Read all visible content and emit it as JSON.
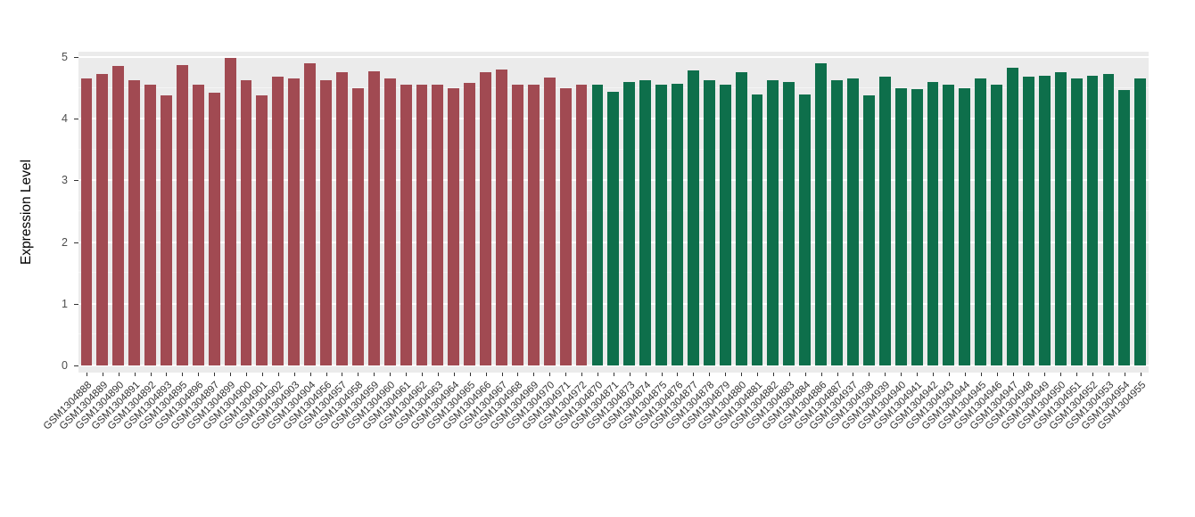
{
  "chart_data": {
    "type": "bar",
    "title": "",
    "xlabel": "",
    "ylabel": "Expression Level",
    "ylim": [
      0,
      5.2
    ],
    "yticks": [
      0,
      1,
      2,
      3,
      4,
      5
    ],
    "grid": true,
    "legend": false,
    "panel_background": "#ebebeb",
    "grid_major_color": "#ffffff",
    "grid_minor_color": "#f4f4f4",
    "bar_groups": [
      {
        "name": "group1",
        "color": "#A14A52",
        "start": 0,
        "count": 32
      },
      {
        "name": "group2",
        "color": "#0E6F4B",
        "start": 32,
        "count": 35
      }
    ],
    "categories": [
      "GSM1304888",
      "GSM1304889",
      "GSM1304890",
      "GSM1304891",
      "GSM1304892",
      "GSM1304893",
      "GSM1304895",
      "GSM1304896",
      "GSM1304897",
      "GSM1304899",
      "GSM1304900",
      "GSM1304901",
      "GSM1304902",
      "GSM1304903",
      "GSM1304904",
      "GSM1304956",
      "GSM1304957",
      "GSM1304958",
      "GSM1304959",
      "GSM1304960",
      "GSM1304961",
      "GSM1304962",
      "GSM1304963",
      "GSM1304964",
      "GSM1304965",
      "GSM1304966",
      "GSM1304967",
      "GSM1304968",
      "GSM1304969",
      "GSM1304970",
      "GSM1304971",
      "GSM1304972",
      "GSM1304870",
      "GSM1304871",
      "GSM1304873",
      "GSM1304874",
      "GSM1304875",
      "GSM1304876",
      "GSM1304877",
      "GSM1304878",
      "GSM1304879",
      "GSM1304880",
      "GSM1304881",
      "GSM1304882",
      "GSM1304883",
      "GSM1304884",
      "GSM1304886",
      "GSM1304887",
      "GSM1304937",
      "GSM1304938",
      "GSM1304939",
      "GSM1304940",
      "GSM1304941",
      "GSM1304942",
      "GSM1304943",
      "GSM1304944",
      "GSM1304945",
      "GSM1304946",
      "GSM1304947",
      "GSM1304948",
      "GSM1304949",
      "GSM1304950",
      "GSM1304951",
      "GSM1304952",
      "GSM1304953",
      "GSM1304954",
      "GSM1304955"
    ],
    "values": [
      4.65,
      4.72,
      4.85,
      4.62,
      4.55,
      4.38,
      4.87,
      4.55,
      4.42,
      4.98,
      4.63,
      4.38,
      4.68,
      4.65,
      4.9,
      4.62,
      4.75,
      4.5,
      4.77,
      4.65,
      4.55,
      4.55,
      4.55,
      4.5,
      4.58,
      4.75,
      4.8,
      4.55,
      4.55,
      4.67,
      4.5,
      4.55,
      4.55,
      4.43,
      4.6,
      4.62,
      4.55,
      4.57,
      4.78,
      4.63,
      4.55,
      4.75,
      4.4,
      4.62,
      4.6,
      4.4,
      4.9,
      4.62,
      4.65,
      4.38,
      4.68,
      4.5,
      4.48,
      4.6,
      4.55,
      4.5,
      4.65,
      4.55,
      4.82,
      4.68,
      4.7,
      4.75,
      4.65,
      4.7,
      4.72,
      4.47,
      4.65
    ]
  }
}
